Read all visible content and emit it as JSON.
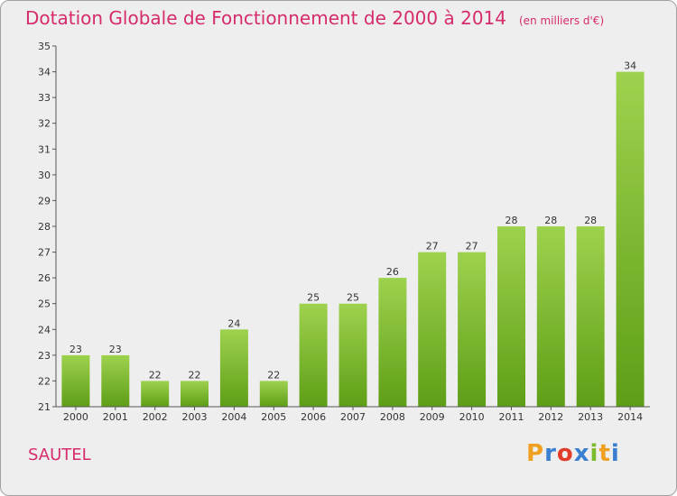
{
  "header": {
    "title": "Dotation Globale de Fonctionnement de 2000 à 2014",
    "subtitle": "(en milliers d'€)"
  },
  "footer": {
    "commune": "SAUTEL",
    "logo_letters": [
      "P",
      "r",
      "o",
      "x",
      "i",
      "t",
      "i"
    ],
    "logo_colors": [
      "#f0a020",
      "#3a7fd0",
      "#e23c2b",
      "#3a7fd0",
      "#7cbb2c",
      "#f0a020",
      "#3a7fd0"
    ]
  },
  "colors": {
    "bar_top": "#9ed24e",
    "bar_bottom": "#5e9e16",
    "axis": "#555555",
    "title": "#d62b6c"
  },
  "chart_data": {
    "type": "bar",
    "title": "Dotation Globale de Fonctionnement de 2000 à 2014",
    "subtitle": "(en milliers d'€)",
    "categories": [
      "2000",
      "2001",
      "2002",
      "2003",
      "2004",
      "2005",
      "2006",
      "2007",
      "2008",
      "2009",
      "2010",
      "2011",
      "2012",
      "2013",
      "2014"
    ],
    "values": [
      23,
      23,
      22,
      22,
      24,
      22,
      25,
      25,
      26,
      27,
      27,
      28,
      28,
      28,
      34
    ],
    "xlabel": "",
    "ylabel": "",
    "ylim": [
      21,
      35
    ],
    "yticks": [
      21,
      22,
      23,
      24,
      25,
      26,
      27,
      28,
      29,
      30,
      31,
      32,
      33,
      34,
      35
    ],
    "grid": false,
    "legend": "none"
  }
}
